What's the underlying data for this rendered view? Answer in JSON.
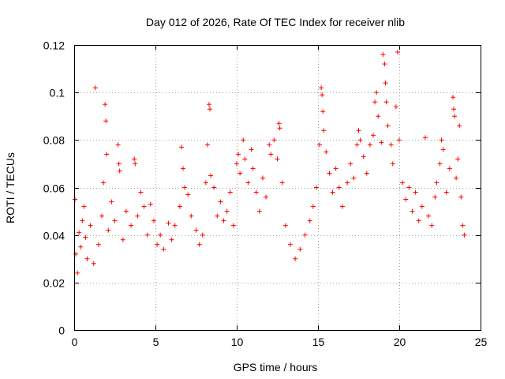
{
  "chart_data": {
    "type": "scatter",
    "title": "Day 012 of 2026, Rate Of TEC Index for receiver nlib",
    "xlabel": "GPS time / hours",
    "ylabel": "ROTI / TECUs",
    "xlim": [
      0,
      25
    ],
    "ylim": [
      0,
      0.12
    ],
    "xticks": [
      0,
      5,
      10,
      15,
      20,
      25
    ],
    "xtick_labels": [
      "0",
      "5",
      "10",
      "15",
      "20",
      "25"
    ],
    "yticks": [
      0,
      0.02,
      0.04,
      0.06,
      0.08,
      0.1,
      0.12
    ],
    "ytick_labels": [
      "0",
      "0.02",
      "0.04",
      "0.06",
      "0.08",
      "0.1",
      "0.12"
    ],
    "grid": true,
    "marker": "plus",
    "color": "#ff0000",
    "series": [
      {
        "name": "ROTI",
        "points": [
          [
            0.05,
            0.055
          ],
          [
            0.1,
            0.032
          ],
          [
            0.2,
            0.024
          ],
          [
            0.3,
            0.041
          ],
          [
            0.4,
            0.035
          ],
          [
            0.5,
            0.046
          ],
          [
            0.6,
            0.052
          ],
          [
            0.7,
            0.039
          ],
          [
            0.8,
            0.03
          ],
          [
            1.0,
            0.044
          ],
          [
            1.2,
            0.028
          ],
          [
            1.3,
            0.102
          ],
          [
            1.5,
            0.036
          ],
          [
            1.7,
            0.048
          ],
          [
            1.9,
            0.095
          ],
          [
            1.95,
            0.088
          ],
          [
            2.0,
            0.074
          ],
          [
            1.8,
            0.062
          ],
          [
            2.1,
            0.042
          ],
          [
            2.3,
            0.054
          ],
          [
            2.5,
            0.046
          ],
          [
            2.7,
            0.078
          ],
          [
            2.75,
            0.07
          ],
          [
            2.8,
            0.067
          ],
          [
            3.0,
            0.038
          ],
          [
            3.2,
            0.05
          ],
          [
            3.5,
            0.044
          ],
          [
            3.7,
            0.072
          ],
          [
            3.75,
            0.07
          ],
          [
            3.9,
            0.048
          ],
          [
            4.1,
            0.058
          ],
          [
            4.3,
            0.052
          ],
          [
            4.5,
            0.04
          ],
          [
            4.7,
            0.053
          ],
          [
            4.9,
            0.046
          ],
          [
            5.1,
            0.036
          ],
          [
            5.3,
            0.04
          ],
          [
            5.5,
            0.034
          ],
          [
            5.8,
            0.045
          ],
          [
            6.0,
            0.038
          ],
          [
            6.2,
            0.044
          ],
          [
            6.5,
            0.052
          ],
          [
            6.6,
            0.077
          ],
          [
            6.7,
            0.068
          ],
          [
            6.8,
            0.06
          ],
          [
            7.0,
            0.057
          ],
          [
            7.2,
            0.048
          ],
          [
            7.5,
            0.042
          ],
          [
            7.7,
            0.036
          ],
          [
            7.9,
            0.04
          ],
          [
            8.1,
            0.062
          ],
          [
            8.2,
            0.078
          ],
          [
            8.3,
            0.095
          ],
          [
            8.35,
            0.093
          ],
          [
            8.4,
            0.065
          ],
          [
            8.6,
            0.06
          ],
          [
            8.8,
            0.048
          ],
          [
            9.0,
            0.054
          ],
          [
            9.2,
            0.046
          ],
          [
            9.4,
            0.05
          ],
          [
            9.6,
            0.058
          ],
          [
            9.8,
            0.044
          ],
          [
            10.0,
            0.07
          ],
          [
            10.1,
            0.074
          ],
          [
            10.2,
            0.066
          ],
          [
            10.4,
            0.08
          ],
          [
            10.5,
            0.072
          ],
          [
            10.7,
            0.062
          ],
          [
            10.9,
            0.076
          ],
          [
            11.0,
            0.068
          ],
          [
            11.2,
            0.058
          ],
          [
            11.4,
            0.05
          ],
          [
            11.6,
            0.064
          ],
          [
            11.8,
            0.056
          ],
          [
            12.0,
            0.078
          ],
          [
            12.1,
            0.074
          ],
          [
            12.3,
            0.08
          ],
          [
            12.5,
            0.072
          ],
          [
            12.6,
            0.087
          ],
          [
            12.65,
            0.085
          ],
          [
            12.8,
            0.062
          ],
          [
            13.0,
            0.044
          ],
          [
            13.3,
            0.036
          ],
          [
            13.6,
            0.03
          ],
          [
            13.9,
            0.034
          ],
          [
            14.2,
            0.04
          ],
          [
            14.5,
            0.046
          ],
          [
            14.7,
            0.052
          ],
          [
            14.9,
            0.06
          ],
          [
            15.1,
            0.078
          ],
          [
            15.2,
            0.102
          ],
          [
            15.25,
            0.099
          ],
          [
            15.3,
            0.092
          ],
          [
            15.35,
            0.084
          ],
          [
            15.5,
            0.075
          ],
          [
            15.7,
            0.066
          ],
          [
            15.9,
            0.058
          ],
          [
            16.1,
            0.068
          ],
          [
            16.3,
            0.06
          ],
          [
            16.5,
            0.052
          ],
          [
            16.8,
            0.062
          ],
          [
            17.0,
            0.07
          ],
          [
            17.2,
            0.064
          ],
          [
            17.4,
            0.078
          ],
          [
            17.5,
            0.084
          ],
          [
            17.6,
            0.08
          ],
          [
            17.8,
            0.073
          ],
          [
            18.0,
            0.066
          ],
          [
            18.2,
            0.078
          ],
          [
            18.4,
            0.082
          ],
          [
            18.5,
            0.096
          ],
          [
            18.6,
            0.1
          ],
          [
            18.7,
            0.09
          ],
          [
            18.9,
            0.079
          ],
          [
            19.0,
            0.116
          ],
          [
            19.1,
            0.112
          ],
          [
            19.15,
            0.104
          ],
          [
            19.2,
            0.096
          ],
          [
            19.3,
            0.086
          ],
          [
            19.5,
            0.078
          ],
          [
            19.6,
            0.07
          ],
          [
            19.8,
            0.094
          ],
          [
            19.9,
            0.117
          ],
          [
            20.0,
            0.08
          ],
          [
            20.2,
            0.062
          ],
          [
            20.4,
            0.055
          ],
          [
            20.6,
            0.06
          ],
          [
            20.8,
            0.05
          ],
          [
            21.0,
            0.058
          ],
          [
            21.2,
            0.046
          ],
          [
            21.4,
            0.052
          ],
          [
            21.6,
            0.081
          ],
          [
            21.8,
            0.048
          ],
          [
            22.0,
            0.044
          ],
          [
            22.2,
            0.056
          ],
          [
            22.3,
            0.062
          ],
          [
            22.5,
            0.07
          ],
          [
            22.6,
            0.08
          ],
          [
            22.7,
            0.076
          ],
          [
            22.9,
            0.058
          ],
          [
            23.1,
            0.068
          ],
          [
            23.3,
            0.098
          ],
          [
            23.35,
            0.093
          ],
          [
            23.4,
            0.09
          ],
          [
            23.5,
            0.064
          ],
          [
            23.6,
            0.072
          ],
          [
            23.7,
            0.086
          ],
          [
            23.8,
            0.056
          ],
          [
            23.9,
            0.044
          ],
          [
            24.0,
            0.04
          ]
        ]
      }
    ]
  }
}
